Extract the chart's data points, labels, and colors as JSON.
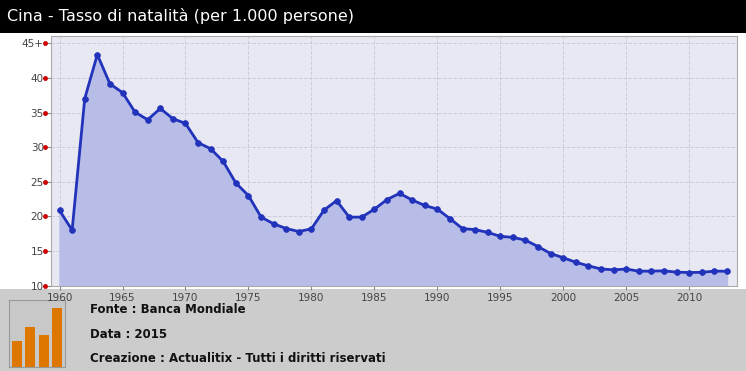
{
  "title": "Cina - Tasso di natalità (per 1.000 persone)",
  "title_bg": "#000000",
  "title_color": "#ffffff",
  "plot_bg": "#e8e8f2",
  "line_color": "#2233bb",
  "fill_color": "#b8bde8",
  "marker_color": "#2233bb",
  "years": [
    1960,
    1961,
    1962,
    1963,
    1964,
    1965,
    1966,
    1967,
    1968,
    1969,
    1970,
    1971,
    1972,
    1973,
    1974,
    1975,
    1976,
    1977,
    1978,
    1979,
    1980,
    1981,
    1982,
    1983,
    1984,
    1985,
    1986,
    1987,
    1988,
    1989,
    1990,
    1991,
    1992,
    1993,
    1994,
    1995,
    1996,
    1997,
    1998,
    1999,
    2000,
    2001,
    2002,
    2003,
    2004,
    2005,
    2006,
    2007,
    2008,
    2009,
    2010,
    2011,
    2012,
    2013
  ],
  "values": [
    20.86,
    18.02,
    37.01,
    43.37,
    39.14,
    37.88,
    35.05,
    33.96,
    35.59,
    34.11,
    33.43,
    30.65,
    29.77,
    27.93,
    24.82,
    23.01,
    19.91,
    18.93,
    18.25,
    17.82,
    18.21,
    20.91,
    22.28,
    19.9,
    19.9,
    21.04,
    22.43,
    23.33,
    22.37,
    21.58,
    21.06,
    19.68,
    18.24,
    18.09,
    17.7,
    17.12,
    16.98,
    16.57,
    15.64,
    14.64,
    14.03,
    13.38,
    12.86,
    12.41,
    12.29,
    12.4,
    12.09,
    12.1,
    12.14,
    11.95,
    11.9,
    11.93,
    12.1,
    12.08
  ],
  "ylim": [
    10,
    46
  ],
  "yticks": [
    10,
    15,
    20,
    25,
    30,
    35,
    40,
    45
  ],
  "xticks": [
    1960,
    1965,
    1970,
    1975,
    1980,
    1985,
    1990,
    1995,
    2000,
    2005,
    2010
  ],
  "footer_bg": "#cccccc",
  "footer_inner_bg": "#e0e0e0",
  "grid_color": "#ccccdd",
  "outer_bg": "#ffffff",
  "footer_line1": "Fonte : Banca Mondiale",
  "footer_line2": "Data : 2015",
  "footer_line3": "Creazione : Actualitix - Tutti i diritti riservati"
}
